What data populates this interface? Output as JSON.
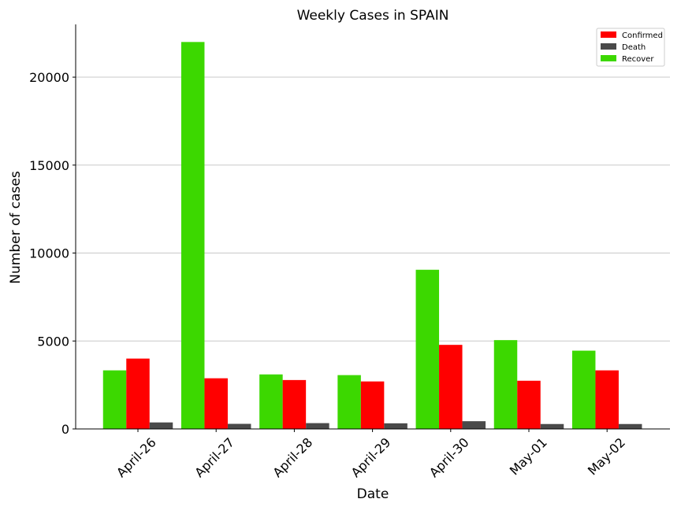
{
  "chart_data": {
    "type": "bar",
    "title": "Weekly Cases in SPAIN",
    "xlabel": "Date",
    "ylabel": "Number of cases",
    "categories": [
      "April-26",
      "April-27",
      "April-28",
      "April-29",
      "April-30",
      "May-01",
      "May-02"
    ],
    "series": [
      {
        "name": "Recover",
        "color": "#3cd800",
        "values": [
          3330,
          22000,
          3100,
          3060,
          9050,
          5050,
          4450
        ]
      },
      {
        "name": "Confirmed",
        "color": "#ff0000",
        "values": [
          4000,
          2880,
          2780,
          2700,
          4780,
          2740,
          3330
        ]
      },
      {
        "name": "Death",
        "color": "#4a4a4a",
        "values": [
          370,
          290,
          330,
          320,
          440,
          280,
          280
        ]
      }
    ],
    "legend_order": [
      "Confirmed",
      "Death",
      "Recover"
    ],
    "legend_position": "top-right",
    "ylim": [
      0,
      23000
    ],
    "yticks": [
      0,
      5000,
      10000,
      15000,
      20000
    ],
    "grid": "horizontal"
  }
}
